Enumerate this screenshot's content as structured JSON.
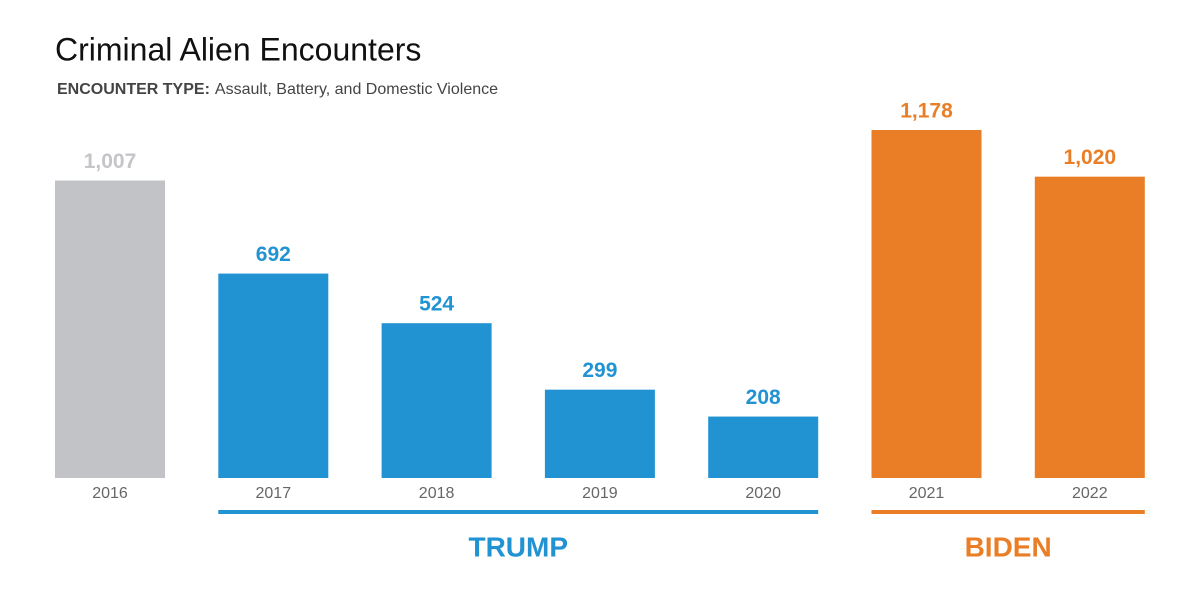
{
  "chart_data": {
    "type": "bar",
    "title": "Criminal Alien Encounters",
    "subtitle_label": "ENCOUNTER TYPE:",
    "subtitle": "Assault, Battery, and Domestic Violence",
    "categories": [
      "2016",
      "2017",
      "2018",
      "2019",
      "2020",
      "2021",
      "2022"
    ],
    "values": [
      1007,
      692,
      524,
      299,
      208,
      1178,
      1020
    ],
    "value_labels": [
      "1,007",
      "692",
      "524",
      "299",
      "208",
      "1,178",
      "1,020"
    ],
    "color": "#c2c3c7",
    "groups": [
      {
        "name": "TRUMP",
        "color": "#2293d2",
        "categories": [
          "2017",
          "2018",
          "2019",
          "2020"
        ]
      },
      {
        "name": "BIDEN",
        "color": "#e97e26",
        "categories": [
          "2021",
          "2022"
        ]
      }
    ]
  }
}
